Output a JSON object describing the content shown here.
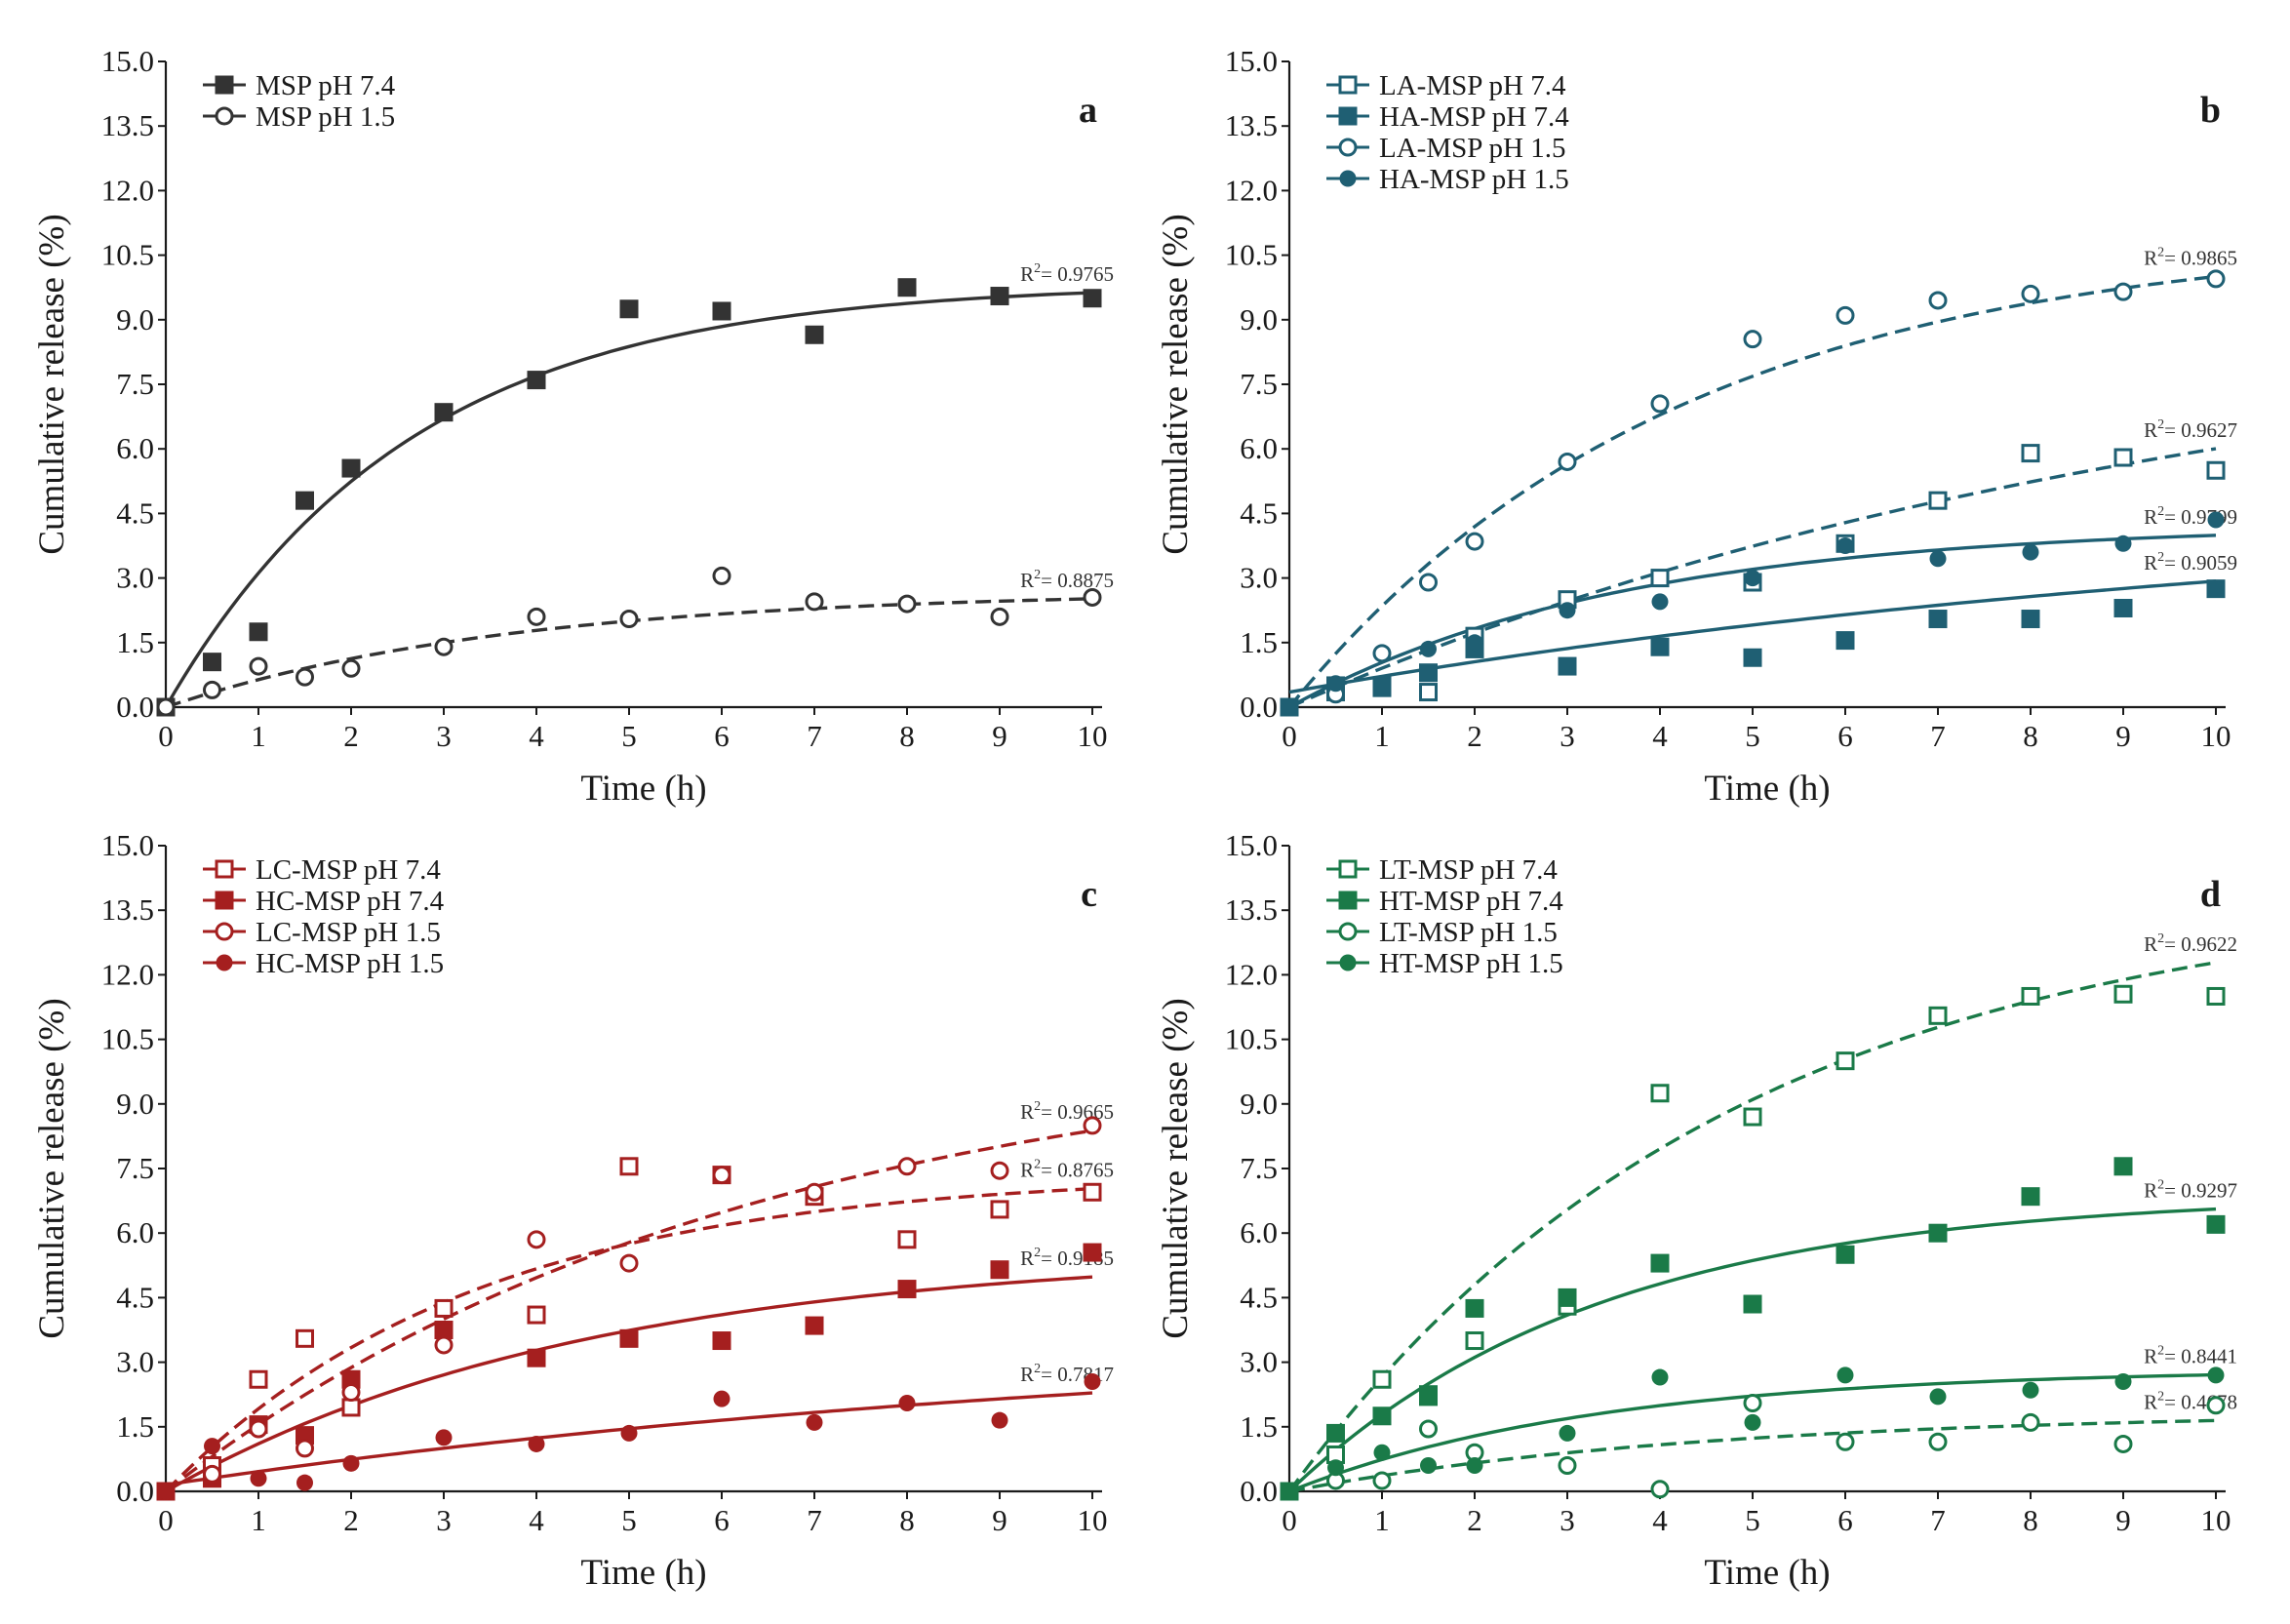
{
  "chart_data": [
    {
      "type": "scatter",
      "panel": "a",
      "color": "#333333",
      "xlabel": "Time (h)",
      "ylabel": "Cumulative release (%)",
      "xlim": [
        0,
        10
      ],
      "ylim": [
        0,
        15
      ],
      "xticks": [
        "0",
        "1",
        "2",
        "3",
        "4",
        "5",
        "6",
        "7",
        "8",
        "9",
        "10"
      ],
      "yticks": [
        "0.0",
        "1.5",
        "3.0",
        "4.5",
        "6.0",
        "7.5",
        "9.0",
        "10.5",
        "12.0",
        "13.5",
        "15.0"
      ],
      "series": [
        {
          "name": "MSP pH 7.4",
          "marker": "square-filled",
          "line": "solid",
          "r2": "0.9765",
          "x": [
            0,
            0.5,
            1,
            1.5,
            2,
            3,
            4,
            5,
            6,
            7,
            8,
            9,
            10
          ],
          "y": [
            0,
            1.05,
            1.75,
            4.8,
            5.55,
            6.85,
            7.6,
            9.25,
            9.2,
            8.65,
            9.75,
            9.55,
            9.5
          ],
          "fit": {
            "a": 9.85,
            "k": 0.38
          }
        },
        {
          "name": "MSP pH 1.5",
          "marker": "circle-open",
          "line": "dashed",
          "r2": "0.8875",
          "x": [
            0,
            0.5,
            1,
            1.5,
            2,
            3,
            4,
            5,
            6,
            7,
            8,
            9,
            10
          ],
          "y": [
            0,
            0.4,
            0.95,
            0.7,
            0.9,
            1.4,
            2.1,
            2.05,
            3.05,
            2.45,
            2.4,
            2.1,
            2.55
          ],
          "fit": {
            "a": 2.7,
            "k": 0.27
          }
        }
      ]
    },
    {
      "type": "scatter",
      "panel": "b",
      "color": "#1f5f73",
      "xlabel": "Time (h)",
      "ylabel": "Cumulative release (%)",
      "xlim": [
        0,
        10
      ],
      "ylim": [
        0,
        15
      ],
      "xticks": [
        "0",
        "1",
        "2",
        "3",
        "4",
        "5",
        "6",
        "7",
        "8",
        "9",
        "10"
      ],
      "yticks": [
        "0.0",
        "1.5",
        "3.0",
        "4.5",
        "6.0",
        "7.5",
        "9.0",
        "10.5",
        "12.0",
        "13.5",
        "15.0"
      ],
      "series": [
        {
          "name": "LA-MSP pH 7.4",
          "marker": "square-open",
          "line": "dashed",
          "r2": "0.9627",
          "x": [
            0,
            0.5,
            1,
            1.5,
            2,
            3,
            4,
            5,
            6,
            7,
            8,
            9,
            10
          ],
          "y": [
            0,
            0.35,
            0.5,
            0.35,
            1.65,
            2.5,
            3.0,
            2.9,
            3.8,
            4.8,
            5.9,
            5.8,
            5.5
          ],
          "fit": {
            "a": 9.5,
            "k": 0.1
          }
        },
        {
          "name": "HA-MSP pH 7.4",
          "marker": "square-filled",
          "line": "solid",
          "r2": "0.9059",
          "x": [
            0,
            0.5,
            1,
            1.5,
            2,
            3,
            4,
            5,
            6,
            7,
            8,
            9,
            10
          ],
          "y": [
            0,
            0.5,
            0.45,
            0.8,
            1.35,
            0.95,
            1.4,
            1.15,
            1.55,
            2.05,
            2.05,
            2.3,
            2.75
          ],
          "fit": {
            "a": 4.5,
            "k": 0.085,
            "b": 0.35
          }
        },
        {
          "name": "LA-MSP pH 1.5",
          "marker": "circle-open",
          "line": "dashed",
          "r2": "0.9865",
          "x": [
            0,
            0.5,
            1,
            1.5,
            2,
            3,
            4,
            5,
            6,
            7,
            8,
            9,
            10
          ],
          "y": [
            0,
            0.3,
            1.25,
            2.9,
            3.85,
            5.7,
            7.05,
            8.55,
            9.1,
            9.45,
            9.6,
            9.65,
            9.95
          ],
          "fit": {
            "a": 11.0,
            "k": 0.24
          }
        },
        {
          "name": "HA-MSP pH 1.5",
          "marker": "circle-filled",
          "line": "solid",
          "r2": "0.9799",
          "x": [
            0,
            0.5,
            1,
            1.5,
            2,
            3,
            4,
            5,
            6,
            7,
            8,
            9,
            10
          ],
          "y": [
            0,
            0.55,
            0.5,
            1.35,
            1.5,
            2.25,
            2.45,
            3.0,
            3.75,
            3.45,
            3.6,
            3.8,
            4.35
          ],
          "fit": {
            "a": 4.25,
            "k": 0.28
          }
        }
      ]
    },
    {
      "type": "scatter",
      "panel": "c",
      "color": "#a51f1f",
      "xlabel": "Time (h)",
      "ylabel": "Cumulative release (%)",
      "xlim": [
        0,
        10
      ],
      "ylim": [
        0,
        15
      ],
      "xticks": [
        "0",
        "1",
        "2",
        "3",
        "4",
        "5",
        "6",
        "7",
        "8",
        "9",
        "10"
      ],
      "yticks": [
        "0.0",
        "1.5",
        "3.0",
        "4.5",
        "6.0",
        "7.5",
        "9.0",
        "10.5",
        "12.0",
        "13.5",
        "15.0"
      ],
      "series": [
        {
          "name": "LC-MSP pH 7.4",
          "marker": "square-open",
          "line": "dashed",
          "r2": "0.8765",
          "x": [
            0,
            0.5,
            1,
            1.5,
            2,
            3,
            4,
            5,
            6,
            7,
            8,
            9,
            10
          ],
          "y": [
            0,
            0.6,
            2.6,
            3.55,
            1.95,
            4.25,
            4.1,
            7.55,
            7.35,
            6.85,
            5.85,
            6.55,
            6.95
          ],
          "fit": {
            "a": 7.4,
            "k": 0.3
          }
        },
        {
          "name": "HC-MSP pH 7.4",
          "marker": "square-filled",
          "line": "solid",
          "r2": "0.9185",
          "x": [
            0,
            0.5,
            1,
            1.5,
            2,
            3,
            4,
            5,
            6,
            7,
            8,
            9,
            10
          ],
          "y": [
            0,
            0.3,
            1.55,
            1.3,
            2.6,
            3.75,
            3.1,
            3.55,
            3.5,
            3.85,
            4.7,
            5.15,
            5.55
          ],
          "fit": {
            "a": 5.6,
            "k": 0.22
          }
        },
        {
          "name": "LC-MSP pH 1.5",
          "marker": "circle-open",
          "line": "dashed",
          "r2": "0.9665",
          "x": [
            0,
            0.5,
            1,
            1.5,
            2,
            3,
            4,
            5,
            6,
            7,
            8,
            9,
            10
          ],
          "y": [
            0,
            0.4,
            1.45,
            1.0,
            2.3,
            3.4,
            5.85,
            5.3,
            7.35,
            6.95,
            7.55,
            7.45,
            8.5
          ],
          "fit": {
            "a": 10.5,
            "k": 0.16
          }
        },
        {
          "name": "HC-MSP pH 1.5",
          "marker": "circle-filled",
          "line": "solid",
          "r2": "0.7817",
          "x": [
            0,
            0.5,
            1,
            1.5,
            2,
            3,
            4,
            5,
            6,
            7,
            8,
            9,
            10
          ],
          "y": [
            0,
            1.05,
            0.3,
            0.2,
            0.65,
            1.25,
            1.1,
            1.35,
            2.15,
            1.6,
            2.05,
            1.65,
            2.55
          ],
          "fit": {
            "a": 3.6,
            "k": 0.09,
            "b": 0.15
          }
        }
      ]
    },
    {
      "type": "scatter",
      "panel": "d",
      "color": "#1a7a48",
      "xlabel": "Time (h)",
      "ylabel": "Cumulative release (%)",
      "xlim": [
        0,
        10
      ],
      "ylim": [
        0,
        15
      ],
      "xticks": [
        "0",
        "1",
        "2",
        "3",
        "4",
        "5",
        "6",
        "7",
        "8",
        "9",
        "10"
      ],
      "yticks": [
        "0.0",
        "1.5",
        "3.0",
        "4.5",
        "6.0",
        "7.5",
        "9.0",
        "10.5",
        "12.0",
        "13.5",
        "15.0"
      ],
      "series": [
        {
          "name": "LT-MSP pH 7.4",
          "marker": "square-open",
          "line": "dashed",
          "r2": "0.9622",
          "x": [
            0,
            0.5,
            1,
            1.5,
            2,
            3,
            4,
            5,
            6,
            7,
            8,
            9,
            10
          ],
          "y": [
            0,
            0.85,
            2.6,
            2.25,
            3.5,
            4.3,
            9.25,
            8.7,
            10.0,
            11.05,
            11.5,
            11.55,
            11.5
          ],
          "fit": {
            "a": 14.0,
            "k": 0.21
          }
        },
        {
          "name": "HT-MSP pH 7.4",
          "marker": "square-filled",
          "line": "solid",
          "r2": "0.9297",
          "x": [
            0,
            0.5,
            1,
            1.5,
            2,
            3,
            4,
            5,
            6,
            7,
            8,
            9,
            10
          ],
          "y": [
            0,
            1.35,
            1.75,
            2.2,
            4.25,
            4.5,
            5.3,
            4.35,
            5.5,
            6.0,
            6.85,
            7.55,
            6.2
          ],
          "fit": {
            "a": 6.9,
            "k": 0.3
          }
        },
        {
          "name": "LT-MSP pH 1.5",
          "marker": "circle-open",
          "line": "dashed",
          "r2": "0.4678",
          "x": [
            0,
            0.5,
            1,
            1.5,
            2,
            3,
            4,
            5,
            6,
            7,
            8,
            9,
            10
          ],
          "y": [
            0,
            0.25,
            0.25,
            1.45,
            0.9,
            0.6,
            0.05,
            2.05,
            1.15,
            1.15,
            1.6,
            1.1,
            2.0
          ],
          "fit": {
            "a": 1.85,
            "k": 0.22
          }
        },
        {
          "name": "HT-MSP pH 1.5",
          "marker": "circle-filled",
          "line": "solid",
          "r2": "0.8441",
          "x": [
            0,
            0.5,
            1,
            1.5,
            2,
            3,
            4,
            5,
            6,
            7,
            8,
            9,
            10
          ],
          "y": [
            0,
            0.55,
            0.9,
            0.6,
            0.6,
            1.35,
            2.65,
            1.6,
            2.7,
            2.2,
            2.35,
            2.55,
            2.7
          ],
          "fit": {
            "a": 2.85,
            "k": 0.3
          }
        }
      ]
    }
  ],
  "r2_prefix": "R",
  "r2_sup": "2",
  "r2_eq": "= "
}
